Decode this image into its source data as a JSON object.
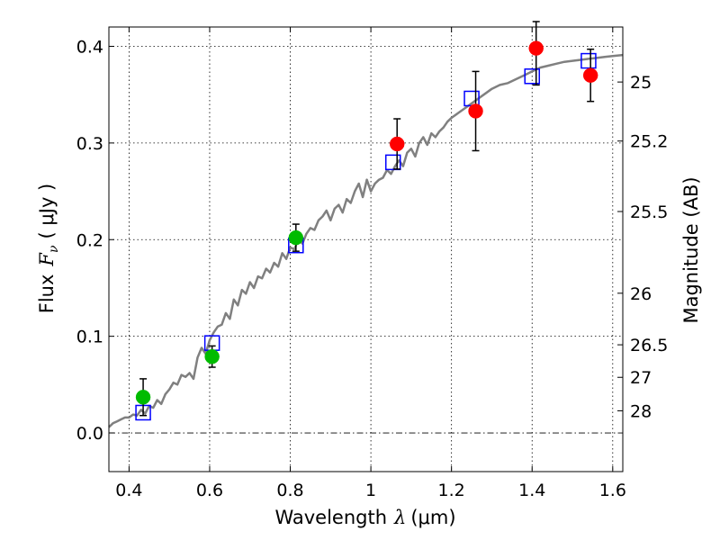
{
  "chart_data": {
    "type": "scatter",
    "xlabel": "Wavelength",
    "xlabel_symbol": "λ",
    "xlabel_unit": "(μm)",
    "ylabel": "Flux",
    "ylabel_symbol": "F",
    "ylabel_subscript": "ν",
    "ylabel_unit": "( μJy )",
    "y2label": "Magnitude (AB)",
    "xlim": [
      0.35,
      1.625
    ],
    "ylim": [
      -0.04,
      0.42
    ],
    "x_ticks": [
      0.4,
      0.6,
      0.8,
      1.0,
      1.2,
      1.4,
      1.6
    ],
    "x_tick_labels": [
      "0.4",
      "0.6",
      "0.8",
      "1",
      "1.2",
      "1.4",
      "1.6"
    ],
    "y_ticks": [
      0.0,
      0.1,
      0.2,
      0.3,
      0.4
    ],
    "y_tick_labels": [
      "0.0",
      "0.1",
      "0.2",
      "0.3",
      "0.4"
    ],
    "mag_ticks": [
      {
        "label": "25",
        "mag": 25.0
      },
      {
        "label": "25.2",
        "mag": 25.2
      },
      {
        "label": "25.5",
        "mag": 25.5
      },
      {
        "label": "26",
        "mag": 26.0
      },
      {
        "label": "26.5",
        "mag": 26.5
      },
      {
        "label": "27",
        "mag": 27.0
      },
      {
        "label": "28",
        "mag": 28.0
      }
    ],
    "grid": true,
    "zero_line": 0.0,
    "series": [
      {
        "name": "model-spectrum",
        "kind": "line",
        "color": "#808080",
        "x": [
          0.35,
          0.36,
          0.37,
          0.38,
          0.39,
          0.4,
          0.41,
          0.42,
          0.43,
          0.44,
          0.45,
          0.46,
          0.47,
          0.48,
          0.49,
          0.5,
          0.51,
          0.52,
          0.53,
          0.54,
          0.55,
          0.56,
          0.57,
          0.58,
          0.59,
          0.6,
          0.61,
          0.62,
          0.63,
          0.64,
          0.65,
          0.66,
          0.67,
          0.68,
          0.69,
          0.7,
          0.71,
          0.72,
          0.73,
          0.74,
          0.75,
          0.76,
          0.77,
          0.78,
          0.79,
          0.8,
          0.81,
          0.82,
          0.83,
          0.84,
          0.85,
          0.86,
          0.87,
          0.88,
          0.89,
          0.9,
          0.91,
          0.92,
          0.93,
          0.94,
          0.95,
          0.96,
          0.97,
          0.98,
          0.99,
          1.0,
          1.01,
          1.02,
          1.03,
          1.04,
          1.05,
          1.06,
          1.07,
          1.08,
          1.09,
          1.1,
          1.11,
          1.12,
          1.13,
          1.14,
          1.15,
          1.16,
          1.17,
          1.18,
          1.19,
          1.2,
          1.22,
          1.24,
          1.26,
          1.28,
          1.3,
          1.32,
          1.34,
          1.36,
          1.38,
          1.4,
          1.42,
          1.44,
          1.46,
          1.48,
          1.5,
          1.52,
          1.54,
          1.56,
          1.58,
          1.6,
          1.625
        ],
        "y": [
          0.006,
          0.01,
          0.012,
          0.014,
          0.016,
          0.016,
          0.019,
          0.018,
          0.024,
          0.02,
          0.028,
          0.026,
          0.034,
          0.03,
          0.04,
          0.045,
          0.052,
          0.05,
          0.06,
          0.058,
          0.062,
          0.056,
          0.078,
          0.088,
          0.082,
          0.096,
          0.104,
          0.11,
          0.112,
          0.124,
          0.118,
          0.138,
          0.132,
          0.148,
          0.144,
          0.156,
          0.15,
          0.162,
          0.16,
          0.17,
          0.166,
          0.176,
          0.172,
          0.186,
          0.18,
          0.192,
          0.19,
          0.2,
          0.196,
          0.206,
          0.212,
          0.21,
          0.22,
          0.224,
          0.23,
          0.22,
          0.232,
          0.236,
          0.228,
          0.242,
          0.238,
          0.25,
          0.258,
          0.244,
          0.262,
          0.25,
          0.258,
          0.262,
          0.264,
          0.272,
          0.268,
          0.276,
          0.282,
          0.276,
          0.29,
          0.294,
          0.286,
          0.3,
          0.306,
          0.298,
          0.31,
          0.306,
          0.312,
          0.316,
          0.322,
          0.326,
          0.332,
          0.338,
          0.344,
          0.35,
          0.356,
          0.36,
          0.362,
          0.366,
          0.37,
          0.374,
          0.378,
          0.38,
          0.382,
          0.384,
          0.385,
          0.386,
          0.387,
          0.388,
          0.389,
          0.39,
          0.391
        ]
      },
      {
        "name": "model-band-fluxes",
        "kind": "open-square",
        "color": "#0000ff",
        "x": [
          0.435,
          0.606,
          0.814,
          1.055,
          1.25,
          1.4,
          1.54
        ],
        "y": [
          0.021,
          0.093,
          0.194,
          0.28,
          0.346,
          0.369,
          0.385
        ]
      },
      {
        "name": "observed-optical",
        "kind": "filled-circle",
        "color": "#00bb00",
        "x": [
          0.435,
          0.606,
          0.814
        ],
        "y": [
          0.037,
          0.079,
          0.202
        ],
        "yerr": [
          0.019,
          0.011,
          0.014
        ]
      },
      {
        "name": "observed-nir",
        "kind": "filled-circle",
        "color": "#ff0000",
        "x": [
          1.065,
          1.26,
          1.41,
          1.545
        ],
        "y": [
          0.299,
          0.333,
          0.398,
          0.37
        ],
        "yerr": [
          0.026,
          0.041,
          0.038,
          0.027
        ]
      }
    ]
  }
}
